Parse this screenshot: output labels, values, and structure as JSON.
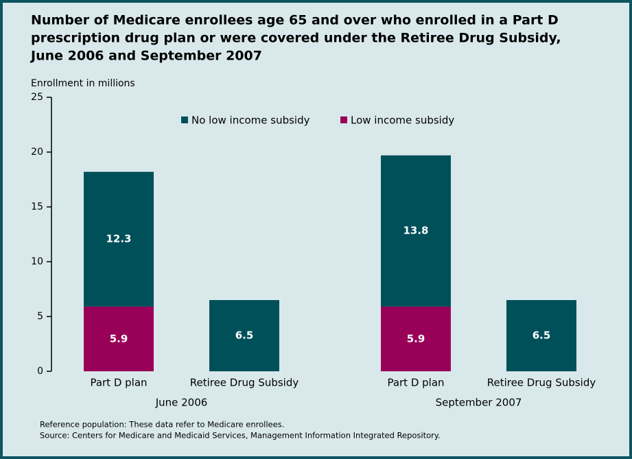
{
  "chart_data": {
    "type": "stacked-bar",
    "title": [
      "Number of Medicare enrollees age 65 and over who enrolled in a Part D",
      "prescription drug plan or were covered under the Retiree Drug Subsidy,",
      "June 2006 and September 2007"
    ],
    "y_label": "Enrollment in millions",
    "categories": [
      "Part D plan",
      "Retiree Drug Subsidy",
      "Part D plan",
      "Retiree Drug Subsidy"
    ],
    "groups": [
      "June 2006",
      "September 2007"
    ],
    "series": [
      {
        "name": "No low income subsidy",
        "color": "#00505a",
        "values": [
          12.3,
          6.5,
          13.8,
          6.5
        ]
      },
      {
        "name": "Low income subsidy",
        "color": "#990057",
        "values": [
          5.9,
          null,
          5.9,
          null
        ]
      }
    ],
    "ylim": [
      0,
      25
    ],
    "yticks": [
      0,
      5,
      10,
      15,
      20,
      25
    ],
    "notes": [
      "Reference population: These data refer to Medicare enrollees.",
      "Source: Centers for Medicare and Medicaid Services, Management Information Integrated Repository."
    ]
  }
}
